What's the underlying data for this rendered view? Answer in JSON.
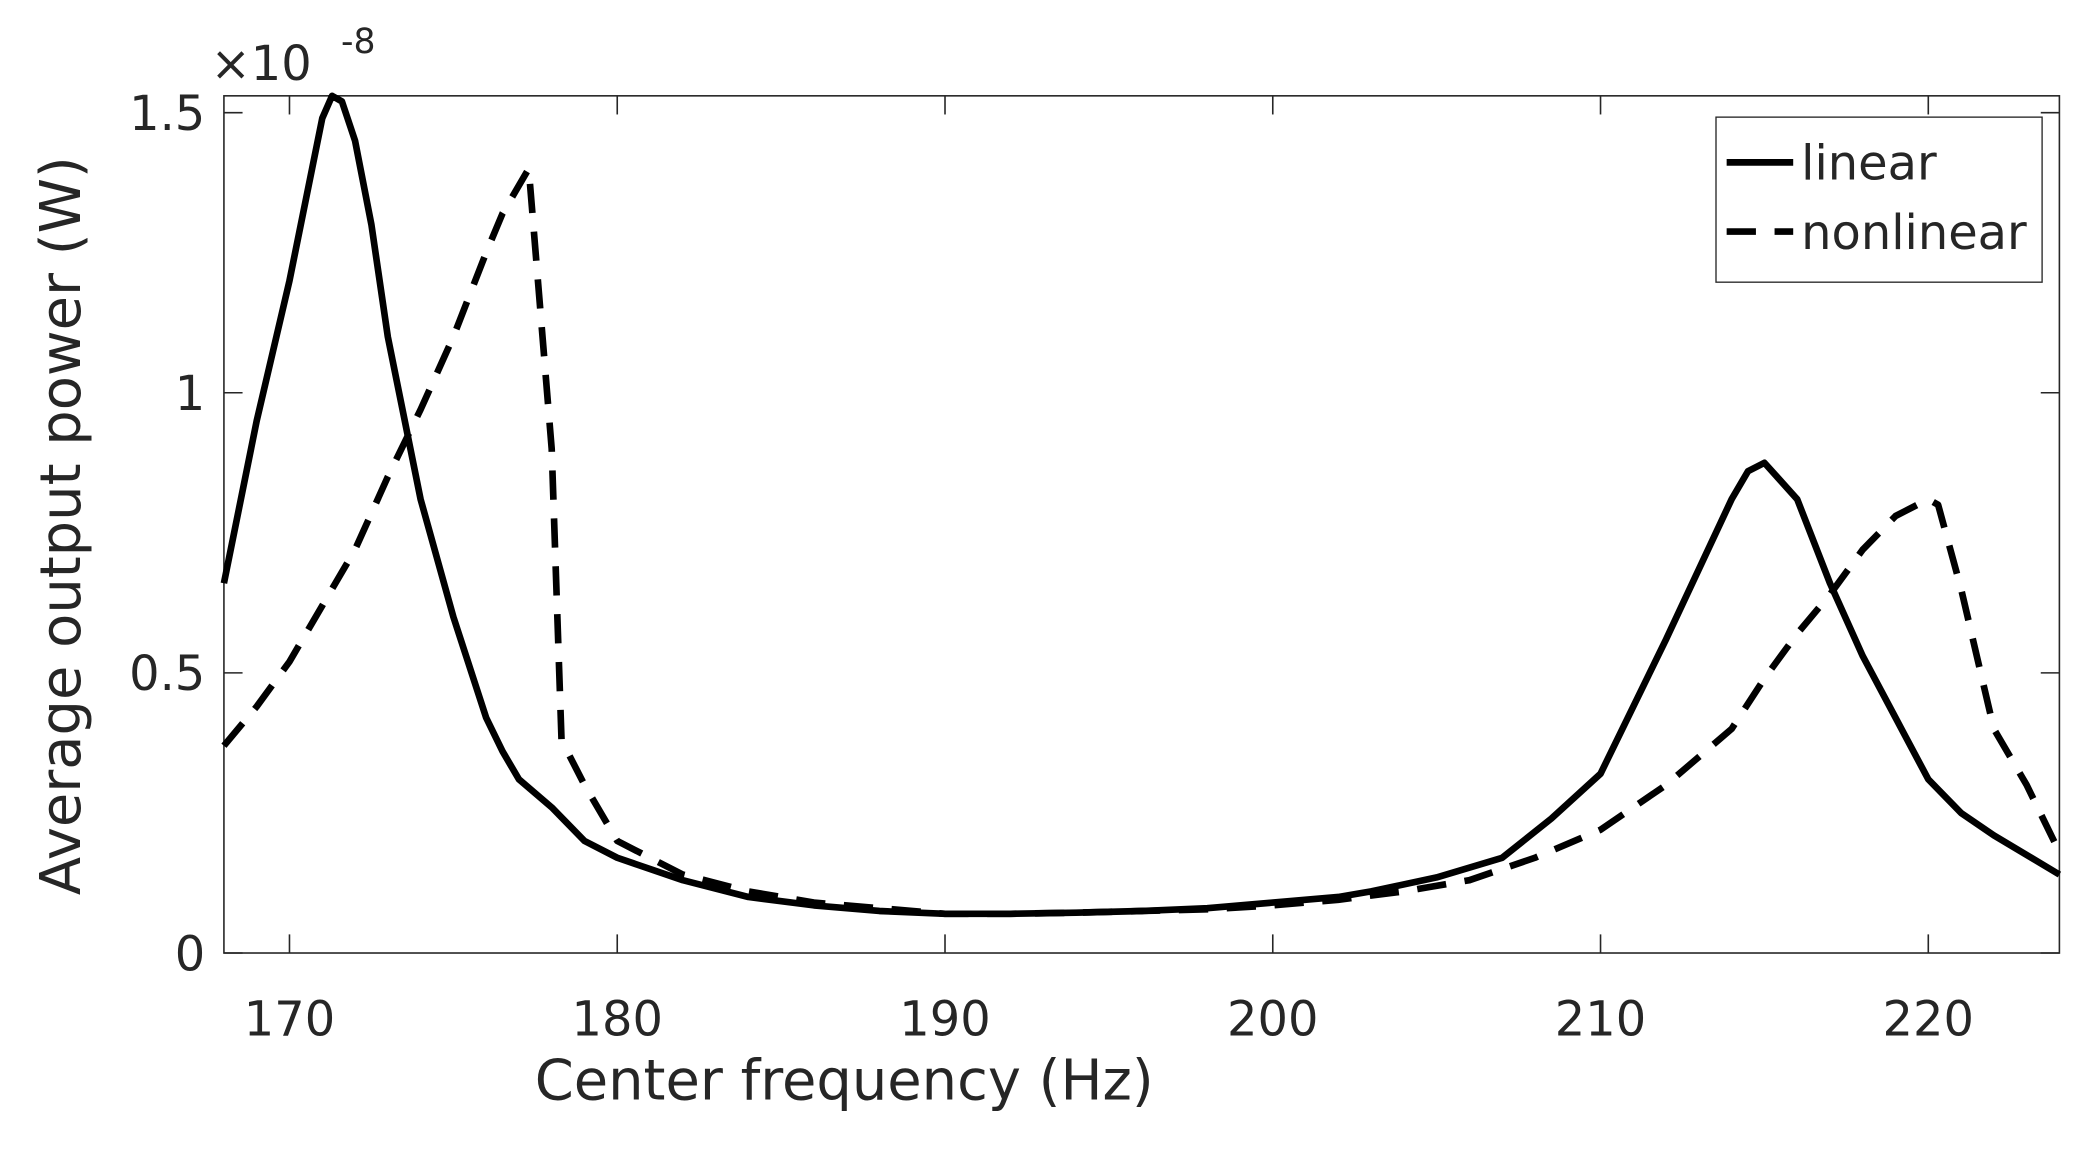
{
  "chart_data": {
    "type": "line",
    "x_label": "Center frequency (Hz)",
    "y_label": "Average output power (W)",
    "y_exponent_base": "×10",
    "y_exponent": "-8",
    "xlim": [
      168,
      224
    ],
    "xticks": [
      170,
      180,
      190,
      200,
      210,
      220
    ],
    "ylim": [
      0,
      1.53
    ],
    "yticks": [
      0,
      0.5,
      1,
      1.5
    ],
    "legend": "upper right",
    "series": [
      {
        "name": "linear",
        "color": "#000000",
        "dash": "solid",
        "x": [
          168,
          169,
          170,
          171,
          171.3,
          171.6,
          172,
          172.5,
          173,
          174,
          175,
          176,
          176.5,
          177,
          178,
          179,
          180,
          182,
          184,
          186,
          188,
          190,
          192,
          194,
          196,
          198,
          200,
          202,
          203,
          205,
          207,
          208.5,
          210,
          212,
          214,
          214.5,
          215,
          216,
          217,
          218,
          219,
          220,
          221,
          222,
          224
        ],
        "values": [
          0.66,
          0.95,
          1.2,
          1.49,
          1.53,
          1.52,
          1.45,
          1.3,
          1.1,
          0.81,
          0.6,
          0.42,
          0.36,
          0.31,
          0.26,
          0.2,
          0.17,
          0.13,
          0.1,
          0.085,
          0.075,
          0.07,
          0.07,
          0.072,
          0.075,
          0.08,
          0.09,
          0.1,
          0.11,
          0.135,
          0.17,
          0.24,
          0.32,
          0.56,
          0.81,
          0.86,
          0.875,
          0.81,
          0.66,
          0.53,
          0.42,
          0.31,
          0.25,
          0.21,
          0.14
        ]
      },
      {
        "name": "nonlinear",
        "color": "#000000",
        "dash": "dashed",
        "x": [
          168,
          169,
          170,
          171,
          172,
          173,
          174,
          175,
          176,
          176.5,
          177.3,
          178,
          178.3,
          179,
          180,
          182,
          184,
          186,
          188,
          190,
          192,
          194,
          196,
          198,
          200,
          202,
          204,
          206,
          208,
          210,
          212,
          214,
          215,
          216,
          217,
          218,
          219,
          220,
          220.3,
          221,
          222,
          223,
          224
        ],
        "values": [
          0.37,
          0.44,
          0.52,
          0.62,
          0.72,
          0.85,
          0.97,
          1.1,
          1.25,
          1.32,
          1.4,
          0.9,
          0.38,
          0.3,
          0.2,
          0.14,
          0.11,
          0.09,
          0.08,
          0.07,
          0.07,
          0.072,
          0.075,
          0.078,
          0.085,
          0.095,
          0.11,
          0.13,
          0.17,
          0.22,
          0.3,
          0.4,
          0.49,
          0.57,
          0.64,
          0.72,
          0.78,
          0.81,
          0.8,
          0.65,
          0.4,
          0.3,
          0.18
        ]
      }
    ]
  }
}
